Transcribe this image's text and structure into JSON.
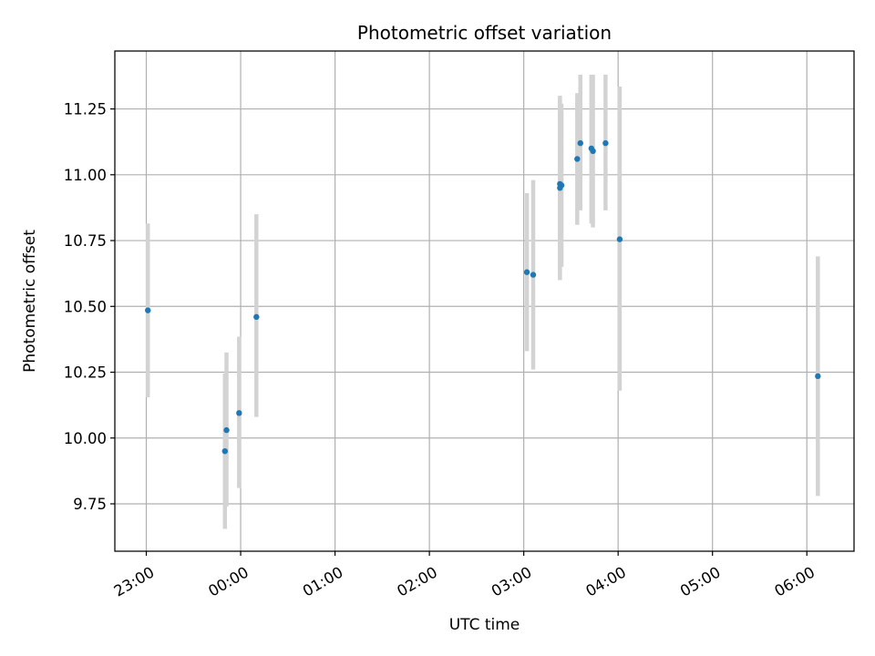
{
  "chart_data": {
    "type": "scatter",
    "title": "Photometric offset variation",
    "xlabel": "UTC time",
    "ylabel": "Photometric offset",
    "x_axis_type": "time",
    "xlim": [
      "22:40",
      "06:30"
    ],
    "ylim": [
      9.57,
      11.47
    ],
    "grid": true,
    "x_ticks": [
      "23:00",
      "00:00",
      "01:00",
      "02:00",
      "03:00",
      "04:00",
      "05:00",
      "06:00"
    ],
    "y_ticks": [
      "9.75",
      "10.00",
      "10.25",
      "10.50",
      "10.75",
      "11.00",
      "11.25"
    ],
    "colors": {
      "points": "#1f77b4",
      "error_bars": "#d3d3d3",
      "grid": "#b0b0b0",
      "axes": "#000000"
    },
    "series": [
      {
        "points": [
          {
            "time": "23:01",
            "y": 10.485,
            "ylow": 10.155,
            "yhigh": 10.815
          },
          {
            "time": "23:50",
            "y": 9.95,
            "ylow": 9.655,
            "yhigh": 10.245
          },
          {
            "time": "23:51",
            "y": 10.03,
            "ylow": 9.74,
            "yhigh": 10.325
          },
          {
            "time": "23:59",
            "y": 10.095,
            "ylow": 9.81,
            "yhigh": 10.385
          },
          {
            "time": "00:10",
            "y": 10.46,
            "ylow": 10.08,
            "yhigh": 10.85
          },
          {
            "time": "03:02",
            "y": 10.63,
            "ylow": 10.33,
            "yhigh": 10.93
          },
          {
            "time": "03:06",
            "y": 10.62,
            "ylow": 10.26,
            "yhigh": 10.98
          },
          {
            "time": "03:23",
            "y": 10.965,
            "ylow": 10.625,
            "yhigh": 11.3
          },
          {
            "time": "03:23",
            "y": 10.95,
            "ylow": 10.6,
            "yhigh": 11.29
          },
          {
            "time": "03:24",
            "y": 10.96,
            "ylow": 10.65,
            "yhigh": 11.27
          },
          {
            "time": "03:34",
            "y": 11.06,
            "ylow": 10.81,
            "yhigh": 11.31
          },
          {
            "time": "03:36",
            "y": 11.12,
            "ylow": 10.865,
            "yhigh": 11.38
          },
          {
            "time": "03:43",
            "y": 11.1,
            "ylow": 10.815,
            "yhigh": 11.38
          },
          {
            "time": "03:44",
            "y": 11.09,
            "ylow": 10.8,
            "yhigh": 11.38
          },
          {
            "time": "03:52",
            "y": 11.12,
            "ylow": 10.865,
            "yhigh": 11.38
          },
          {
            "time": "04:01",
            "y": 10.755,
            "ylow": 10.18,
            "yhigh": 11.335
          },
          {
            "time": "06:07",
            "y": 10.235,
            "ylow": 9.78,
            "yhigh": 10.69
          }
        ]
      }
    ]
  }
}
